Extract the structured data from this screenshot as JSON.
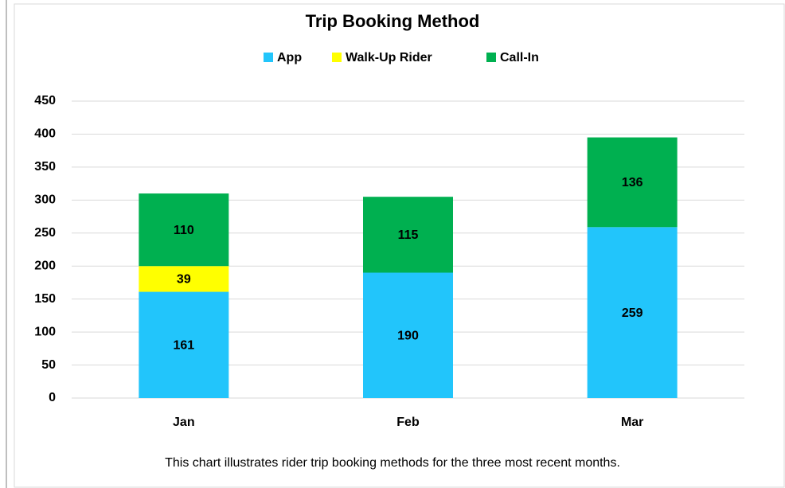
{
  "chart_data": {
    "type": "stacked_bar",
    "title": "Trip Booking Method",
    "categories": [
      "Jan",
      "Feb",
      "Mar"
    ],
    "series": [
      {
        "name": "App",
        "color": "#22c5fb",
        "values": [
          161,
          190,
          259
        ]
      },
      {
        "name": "Walk-Up Rider",
        "color": "#ffff00",
        "values": [
          39,
          0,
          0
        ]
      },
      {
        "name": "Call-In",
        "color": "#00b050",
        "values": [
          110,
          115,
          136
        ]
      }
    ],
    "ylim": [
      0,
      450
    ],
    "yticks": [
      0,
      50,
      100,
      150,
      200,
      250,
      300,
      350,
      400,
      450
    ],
    "grid": true,
    "legend": "top",
    "caption": "This chart illustrates rider trip booking methods for the three most recent months."
  }
}
